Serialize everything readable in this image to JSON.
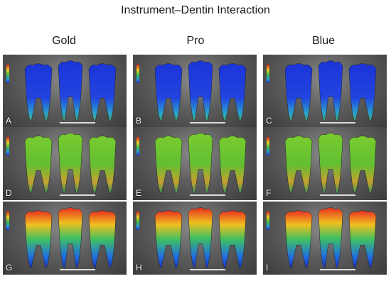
{
  "title": "Instrument–Dentin Interaction",
  "columns": [
    "Gold",
    "Pro",
    "Blue"
  ],
  "panels": [
    {
      "label": "A",
      "scheme": "blue"
    },
    {
      "label": "B",
      "scheme": "blue"
    },
    {
      "label": "C",
      "scheme": "blue"
    },
    {
      "label": "D",
      "scheme": "green"
    },
    {
      "label": "E",
      "scheme": "green"
    },
    {
      "label": "F",
      "scheme": "green"
    },
    {
      "label": "G",
      "scheme": "heat"
    },
    {
      "label": "H",
      "scheme": "heat"
    },
    {
      "label": "I",
      "scheme": "heat"
    }
  ],
  "colors": {
    "blue_base": "#1f3fd6",
    "green_base": "#5fbf2f",
    "heat_hot": "#e82020",
    "panel_bg": "#555555"
  }
}
